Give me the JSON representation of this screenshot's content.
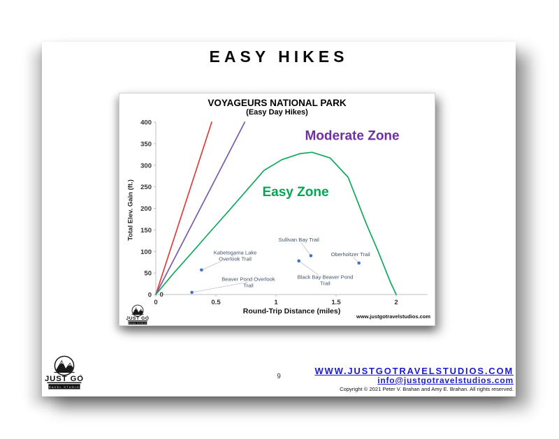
{
  "page": {
    "title": "EASY HIKES",
    "page_number": "9"
  },
  "branding": {
    "logo_primary": "JUST GO",
    "logo_secondary": "TRAVEL STUDIOS",
    "logo_tm": "™"
  },
  "footer": {
    "website": "WWW.JUSTGOTRAVELSTUDIOS.COM",
    "email": "info@justgotravelstudios.com",
    "copyright": "Copyright © 2021 Peter V. Brahan and Amy E. Brahan.  All rights reserved."
  },
  "chart_data": {
    "type": "scatter",
    "title": "VOYAGEURS NATIONAL PARK",
    "subtitle": "(Easy Day Hikes)",
    "xlabel": "Round-Trip Distance (miles)",
    "ylabel": "Total Elev. Gain (ft.)",
    "watermark": "www.justgotravelstudios.com",
    "xlim": [
      0,
      2.28
    ],
    "ylim": [
      0,
      400
    ],
    "x_ticks": [
      0,
      0.5,
      1,
      1.5,
      2
    ],
    "y_ticks": [
      0,
      50,
      100,
      150,
      200,
      250,
      300,
      350,
      400
    ],
    "grid": false,
    "legend": "none",
    "point_color": "#4472c4",
    "label_color": "#44546a",
    "leader_color": "#c4c9d2",
    "axis_color": "#bfbfbf",
    "origin_point_label": "0",
    "zone_labels": [
      {
        "text": "Easy Zone",
        "color": "#00a651",
        "x": 1.163,
        "y": 228
      },
      {
        "text": "Moderate Zone",
        "color": "#7030a0",
        "x": 1.634,
        "y": 359
      }
    ],
    "boundary_lines": [
      {
        "name": "red-steep-boundary-line",
        "color": "#e23b3d",
        "points": [
          [
            0,
            0
          ],
          [
            0.465,
            400
          ]
        ]
      },
      {
        "name": "purple-moderate-boundary-line",
        "color": "#7b5aa6",
        "points": [
          [
            0,
            0
          ],
          [
            0.74,
            400
          ]
        ]
      },
      {
        "name": "green-easy-zone-curve",
        "color": "#0fa95c",
        "points": [
          [
            0,
            0
          ],
          [
            0.15,
            50
          ],
          [
            0.3,
            97
          ],
          [
            0.45,
            145
          ],
          [
            0.6,
            192
          ],
          [
            0.75,
            240
          ],
          [
            0.9,
            288
          ],
          [
            1.05,
            313
          ],
          [
            1.2,
            327
          ],
          [
            1.3,
            330
          ],
          [
            1.45,
            317
          ],
          [
            1.6,
            272
          ],
          [
            1.75,
            165
          ],
          [
            1.85,
            100
          ],
          [
            1.95,
            30
          ],
          [
            2,
            0
          ]
        ]
      }
    ],
    "trails": [
      {
        "name": "Beaver Pond Overlook Trail",
        "x": 0.3,
        "y": 5,
        "label_lines": [
          "Beaver Pond Overlook",
          "Trail"
        ],
        "label_x": 0.77,
        "label_y": 29
      },
      {
        "name": "Kabetogama Lake Overlook Trail",
        "x": 0.38,
        "y": 57,
        "label_lines": [
          "Kabetogama Lake",
          "Overlook Trail"
        ],
        "label_x": 0.66,
        "label_y": 91
      },
      {
        "name": "Black Bay Beaver Pond Trail",
        "x": 1.19,
        "y": 78,
        "label_lines": [
          "Black Bay Beaver Pond",
          "Trail"
        ],
        "label_x": 1.41,
        "label_y": 34
      },
      {
        "name": "Sullivan Bay Trail",
        "x": 1.29,
        "y": 90,
        "label_lines": [
          "Sullivan Bay Trail"
        ],
        "label_x": 1.19,
        "label_y": 128
      },
      {
        "name": "Oberholtzer Trail",
        "x": 1.69,
        "y": 73,
        "label_lines": [
          "Oberholtzer Trail"
        ],
        "label_x": 1.62,
        "label_y": 94
      }
    ]
  }
}
